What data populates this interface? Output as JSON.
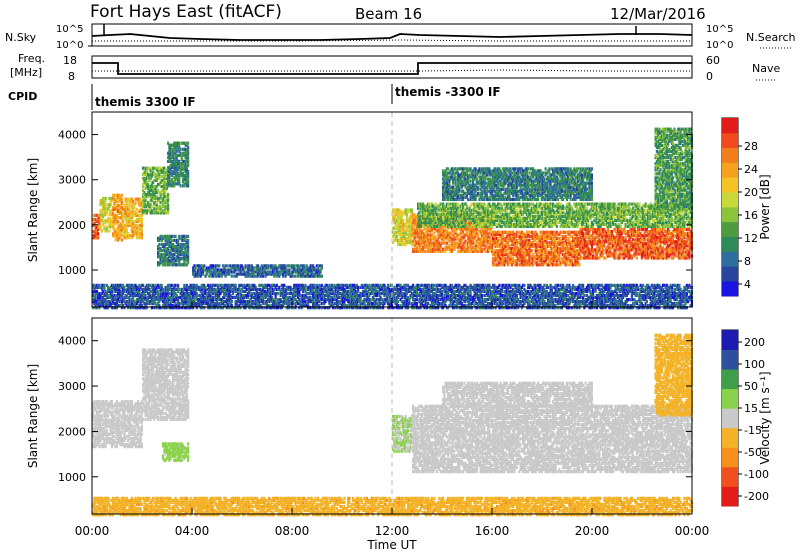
{
  "header": {
    "station": "Fort Hays East (fitACF)",
    "beam": "Beam 16",
    "date": "12/Mar/2016"
  },
  "top_panels": {
    "nsky_label": "N.Sky",
    "nsearch_label": "N.Search",
    "nsky_ticks": [
      "10^5",
      "10^0"
    ],
    "nsearch_ticks": [
      "10^5",
      "10^0"
    ],
    "freq_label": "Freq.",
    "freq_unit": "[MHz]",
    "freq_ticks": [
      "18",
      "8"
    ],
    "nave_label": "Nave",
    "nave_ticks": [
      "60",
      "0"
    ],
    "cpid_label": "CPID",
    "cpid_segments": [
      {
        "label": "themis 3300 IF",
        "start_hour": 0
      },
      {
        "label": "themis -3300 IF",
        "start_hour": 12
      }
    ]
  },
  "chart_data": [
    {
      "type": "heatmap",
      "parameter": "Power",
      "xlabel": "Time UT",
      "ylabel": "Slant Range [km]",
      "xlim": [
        0,
        24
      ],
      "ylim": [
        180,
        4500
      ],
      "yticks": [
        "1000",
        "2000",
        "3000",
        "4000"
      ],
      "colorbar": {
        "label": "Power [dB]",
        "ticks": [
          "28",
          "24",
          "20",
          "16",
          "12",
          "8",
          "4"
        ],
        "range": [
          0,
          32
        ]
      },
      "bands": [
        {
          "t0": 0.0,
          "t1": 0.3,
          "r0": 1750,
          "r1": 2250,
          "value": 27
        },
        {
          "t0": 0.3,
          "t1": 0.8,
          "r0": 1900,
          "r1": 2650,
          "value": 18
        },
        {
          "t0": 0.8,
          "t1": 1.2,
          "r0": 1700,
          "r1": 2700,
          "value": 23
        },
        {
          "t0": 1.2,
          "t1": 2.0,
          "r0": 1750,
          "r1": 2650,
          "value": 21
        },
        {
          "t0": 2.0,
          "t1": 3.0,
          "r0": 2300,
          "r1": 3300,
          "value": 13
        },
        {
          "t0": 3.0,
          "t1": 3.8,
          "r0": 2900,
          "r1": 3850,
          "value": 9
        },
        {
          "t0": 2.6,
          "t1": 3.8,
          "r0": 1150,
          "r1": 1800,
          "value": 8
        },
        {
          "t0": 4.0,
          "t1": 9.2,
          "r0": 900,
          "r1": 1150,
          "value": 6
        },
        {
          "t0": 12.0,
          "t1": 12.8,
          "r0": 1600,
          "r1": 2400,
          "value": 18
        },
        {
          "t0": 12.8,
          "t1": 16.0,
          "r0": 1450,
          "r1": 2300,
          "value": 25
        },
        {
          "t0": 16.0,
          "t1": 19.5,
          "r0": 1150,
          "r1": 1900,
          "value": 26
        },
        {
          "t0": 19.5,
          "t1": 24.0,
          "r0": 1300,
          "r1": 1950,
          "value": 27
        },
        {
          "t0": 13.0,
          "t1": 24.0,
          "r0": 2000,
          "r1": 2500,
          "value": 13
        },
        {
          "t0": 14.0,
          "t1": 20.0,
          "r0": 2600,
          "r1": 3300,
          "value": 8
        },
        {
          "t0": 22.5,
          "t1": 24.0,
          "r0": 2400,
          "r1": 4200,
          "value": 11
        },
        {
          "t0": 0.0,
          "t1": 24.0,
          "r0": 200,
          "r1": 700,
          "value": 5
        }
      ]
    },
    {
      "type": "heatmap",
      "parameter": "Velocity",
      "xlabel": "Time UT",
      "ylabel": "Slant Range [km]",
      "xlim": [
        0,
        24
      ],
      "ylim": [
        180,
        4500
      ],
      "xticks": [
        "00:00",
        "04:00",
        "08:00",
        "12:00",
        "16:00",
        "20:00",
        "00:00"
      ],
      "yticks": [
        "1000",
        "2000",
        "3000",
        "4000"
      ],
      "colorbar": {
        "label": "Velocity [m s⁻¹]",
        "ticks": [
          "200",
          "100",
          "50",
          "15",
          "-15",
          "-50",
          "-100",
          "-200"
        ],
        "range": [
          -250,
          250
        ]
      },
      "bands": [
        {
          "t0": 0.0,
          "t1": 2.0,
          "r0": 1700,
          "r1": 2700,
          "value": 0
        },
        {
          "t0": 2.0,
          "t1": 3.8,
          "r0": 2300,
          "r1": 3850,
          "value": 0
        },
        {
          "t0": 2.8,
          "t1": 3.8,
          "r0": 1400,
          "r1": 1800,
          "value": 40
        },
        {
          "t0": 12.0,
          "t1": 12.8,
          "r0": 1600,
          "r1": 2400,
          "value": 30
        },
        {
          "t0": 12.8,
          "t1": 24.0,
          "r0": 1150,
          "r1": 2600,
          "value": 0
        },
        {
          "t0": 14.0,
          "t1": 20.0,
          "r0": 2600,
          "r1": 3100,
          "value": 0
        },
        {
          "t0": 22.5,
          "t1": 24.0,
          "r0": 2400,
          "r1": 4200,
          "value": -60
        },
        {
          "t0": 0.0,
          "t1": 24.0,
          "r0": 200,
          "r1": 600,
          "value": -70
        }
      ]
    }
  ],
  "colors": {
    "power_scale": [
      "#1a14e0",
      "#27459c",
      "#2e6e9c",
      "#2f8a5a",
      "#4c9b3f",
      "#8bc43a",
      "#c8d83a",
      "#f4c326",
      "#f6a21e",
      "#f27d1c",
      "#ee4a1b",
      "#e31b1b"
    ],
    "velocity_scale": [
      "#e31b1b",
      "#f0501e",
      "#f5901e",
      "#f3b227",
      "#c9c9c9",
      "#8ad24a",
      "#3f9e4a",
      "#2d4f9e",
      "#1c1ab0"
    ],
    "ground_scatter": "#c9c9c9"
  }
}
